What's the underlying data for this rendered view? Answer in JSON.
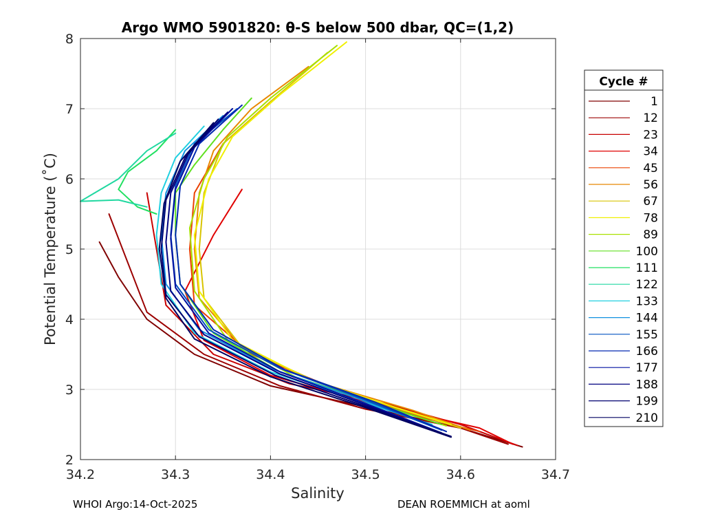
{
  "chart_data": {
    "type": "line",
    "title": "Argo WMO 5901820: θ-S below 500 dbar,  QC=(1,2)",
    "xlabel": "Salinity",
    "ylabel": "Potential Temperature (˚C)",
    "xlim": [
      34.2,
      34.7
    ],
    "ylim": [
      2,
      8
    ],
    "xticks": [
      34.2,
      34.3,
      34.4,
      34.5,
      34.6,
      34.7
    ],
    "xtick_labels": [
      "34.2",
      "34.3",
      "34.4",
      "34.5",
      "34.6",
      "34.7"
    ],
    "yticks": [
      2,
      3,
      4,
      5,
      6,
      7,
      8
    ],
    "ytick_labels": [
      "2",
      "3",
      "4",
      "5",
      "6",
      "7",
      "8"
    ],
    "grid": true,
    "legend_title": "Cycle #",
    "legend_position": "right-outside",
    "series": [
      {
        "name": "1",
        "color": "#800000",
        "points": [
          [
            34.22,
            5.1
          ],
          [
            34.24,
            4.6
          ],
          [
            34.27,
            4.0
          ],
          [
            34.32,
            3.5
          ],
          [
            34.4,
            3.05
          ],
          [
            34.5,
            2.75
          ],
          [
            34.6,
            2.45
          ],
          [
            34.665,
            2.18
          ]
        ]
      },
      {
        "name": "12",
        "color": "#9c0000",
        "points": [
          [
            34.23,
            5.5
          ],
          [
            34.25,
            4.8
          ],
          [
            34.27,
            4.1
          ],
          [
            34.33,
            3.5
          ],
          [
            34.41,
            3.05
          ],
          [
            34.5,
            2.72
          ],
          [
            34.6,
            2.45
          ],
          [
            34.65,
            2.22
          ]
        ]
      },
      {
        "name": "23",
        "color": "#c80000",
        "points": [
          [
            34.27,
            5.8
          ],
          [
            34.28,
            5.0
          ],
          [
            34.29,
            4.2
          ],
          [
            34.34,
            3.5
          ],
          [
            34.42,
            3.08
          ],
          [
            34.52,
            2.8
          ],
          [
            34.6,
            2.5
          ],
          [
            34.66,
            2.2
          ]
        ]
      },
      {
        "name": "34",
        "color": "#e00000",
        "points": [
          [
            34.37,
            5.85
          ],
          [
            34.34,
            5.2
          ],
          [
            34.31,
            4.4
          ],
          [
            34.33,
            3.7
          ],
          [
            34.4,
            3.2
          ],
          [
            34.5,
            2.82
          ],
          [
            34.62,
            2.45
          ],
          [
            34.655,
            2.22
          ]
        ]
      },
      {
        "name": "45",
        "color": "#ea4000",
        "points": [
          [
            34.4,
            7.1
          ],
          [
            34.35,
            6.5
          ],
          [
            34.32,
            5.8
          ],
          [
            34.315,
            5.0
          ],
          [
            34.32,
            4.2
          ],
          [
            34.38,
            3.5
          ],
          [
            34.47,
            3.0
          ],
          [
            34.56,
            2.6
          ],
          [
            34.62,
            2.4
          ]
        ]
      },
      {
        "name": "56",
        "color": "#e88800",
        "points": [
          [
            34.44,
            7.6
          ],
          [
            34.38,
            7.0
          ],
          [
            34.34,
            6.4
          ],
          [
            34.325,
            5.8
          ],
          [
            34.32,
            5.0
          ],
          [
            34.325,
            4.3
          ],
          [
            34.37,
            3.6
          ],
          [
            34.45,
            3.1
          ],
          [
            34.55,
            2.7
          ],
          [
            34.61,
            2.42
          ]
        ]
      },
      {
        "name": "67",
        "color": "#d8c400",
        "points": [
          [
            34.46,
            7.8
          ],
          [
            34.4,
            7.1
          ],
          [
            34.35,
            6.5
          ],
          [
            34.33,
            5.8
          ],
          [
            34.325,
            5.0
          ],
          [
            34.33,
            4.3
          ],
          [
            34.37,
            3.6
          ],
          [
            34.45,
            3.1
          ],
          [
            34.54,
            2.7
          ],
          [
            34.6,
            2.45
          ]
        ]
      },
      {
        "name": "78",
        "color": "#f0f000",
        "points": [
          [
            34.48,
            7.95
          ],
          [
            34.41,
            7.2
          ],
          [
            34.36,
            6.6
          ],
          [
            34.335,
            6.0
          ],
          [
            34.32,
            5.2
          ],
          [
            34.325,
            4.4
          ],
          [
            34.36,
            3.7
          ],
          [
            34.44,
            3.15
          ],
          [
            34.53,
            2.75
          ],
          [
            34.59,
            2.5
          ]
        ]
      },
      {
        "name": "89",
        "color": "#a8e000",
        "points": [
          [
            34.47,
            7.9
          ],
          [
            34.4,
            7.15
          ],
          [
            34.355,
            6.6
          ],
          [
            34.33,
            6.0
          ],
          [
            34.315,
            5.3
          ],
          [
            34.32,
            4.4
          ],
          [
            34.355,
            3.7
          ],
          [
            34.43,
            3.15
          ],
          [
            34.52,
            2.75
          ],
          [
            34.585,
            2.48
          ]
        ]
      },
      {
        "name": "100",
        "color": "#60e020",
        "points": [
          [
            34.38,
            7.15
          ],
          [
            34.35,
            6.7
          ],
          [
            34.32,
            6.2
          ],
          [
            34.3,
            5.8
          ],
          [
            34.3,
            5.2
          ],
          [
            34.305,
            4.5
          ],
          [
            34.34,
            3.8
          ],
          [
            34.41,
            3.25
          ],
          [
            34.5,
            2.85
          ],
          [
            34.58,
            2.5
          ]
        ]
      },
      {
        "name": "111",
        "color": "#20e060",
        "points": [
          [
            34.3,
            6.7
          ],
          [
            34.28,
            6.4
          ],
          [
            34.25,
            6.1
          ],
          [
            34.24,
            5.85
          ],
          [
            34.26,
            5.6
          ],
          [
            34.28,
            5.5
          ]
        ]
      },
      {
        "name": "122",
        "color": "#20d8a0",
        "points": [
          [
            34.3,
            6.65
          ],
          [
            34.27,
            6.4
          ],
          [
            34.24,
            6.0
          ],
          [
            34.2,
            5.68
          ],
          [
            34.24,
            5.7
          ],
          [
            34.27,
            5.6
          ]
        ]
      },
      {
        "name": "133",
        "color": "#20d0e0",
        "points": [
          [
            34.33,
            6.75
          ],
          [
            34.3,
            6.3
          ],
          [
            34.285,
            5.8
          ],
          [
            34.28,
            5.2
          ],
          [
            34.285,
            4.5
          ],
          [
            34.32,
            3.8
          ],
          [
            34.4,
            3.25
          ],
          [
            34.49,
            2.85
          ],
          [
            34.57,
            2.5
          ]
        ]
      },
      {
        "name": "144",
        "color": "#1090e0",
        "points": [
          [
            34.35,
            6.9
          ],
          [
            34.31,
            6.4
          ],
          [
            34.29,
            5.8
          ],
          [
            34.285,
            5.2
          ],
          [
            34.29,
            4.5
          ],
          [
            34.325,
            3.85
          ],
          [
            34.4,
            3.3
          ],
          [
            34.49,
            2.88
          ],
          [
            34.575,
            2.45
          ]
        ]
      },
      {
        "name": "155",
        "color": "#0050c0",
        "points": [
          [
            34.365,
            7.0
          ],
          [
            34.32,
            6.5
          ],
          [
            34.3,
            5.9
          ],
          [
            34.295,
            5.2
          ],
          [
            34.3,
            4.5
          ],
          [
            34.335,
            3.85
          ],
          [
            34.41,
            3.3
          ],
          [
            34.5,
            2.85
          ],
          [
            34.58,
            2.42
          ]
        ]
      },
      {
        "name": "166",
        "color": "#0028b0",
        "points": [
          [
            34.37,
            7.05
          ],
          [
            34.325,
            6.5
          ],
          [
            34.305,
            5.9
          ],
          [
            34.3,
            5.2
          ],
          [
            34.305,
            4.5
          ],
          [
            34.34,
            3.85
          ],
          [
            34.415,
            3.28
          ],
          [
            34.51,
            2.82
          ],
          [
            34.585,
            2.4
          ]
        ]
      },
      {
        "name": "177",
        "color": "#0010a0",
        "points": [
          [
            34.36,
            7.0
          ],
          [
            34.32,
            6.45
          ],
          [
            34.3,
            5.85
          ],
          [
            34.295,
            5.15
          ],
          [
            34.3,
            4.45
          ],
          [
            34.335,
            3.8
          ],
          [
            34.41,
            3.25
          ],
          [
            34.5,
            2.8
          ],
          [
            34.58,
            2.38
          ]
        ]
      },
      {
        "name": "188",
        "color": "#000080",
        "points": [
          [
            34.355,
            6.95
          ],
          [
            34.315,
            6.4
          ],
          [
            34.295,
            5.8
          ],
          [
            34.29,
            5.1
          ],
          [
            34.295,
            4.4
          ],
          [
            34.33,
            3.78
          ],
          [
            34.41,
            3.22
          ],
          [
            34.5,
            2.78
          ],
          [
            34.585,
            2.35
          ]
        ]
      },
      {
        "name": "199",
        "color": "#000070",
        "points": [
          [
            34.345,
            6.85
          ],
          [
            34.31,
            6.3
          ],
          [
            34.29,
            5.7
          ],
          [
            34.285,
            5.0
          ],
          [
            34.29,
            4.35
          ],
          [
            34.325,
            3.75
          ],
          [
            34.405,
            3.2
          ],
          [
            34.5,
            2.76
          ],
          [
            34.59,
            2.33
          ]
        ]
      },
      {
        "name": "210",
        "color": "#000060",
        "points": [
          [
            34.34,
            6.8
          ],
          [
            34.305,
            6.25
          ],
          [
            34.288,
            5.65
          ],
          [
            34.283,
            5.0
          ],
          [
            34.29,
            4.3
          ],
          [
            34.32,
            3.72
          ],
          [
            34.4,
            3.18
          ],
          [
            34.5,
            2.74
          ],
          [
            34.59,
            2.32
          ]
        ]
      }
    ]
  },
  "footer": {
    "left": "WHOI Argo:14-Oct-2025",
    "right": "DEAN ROEMMICH at aoml"
  }
}
